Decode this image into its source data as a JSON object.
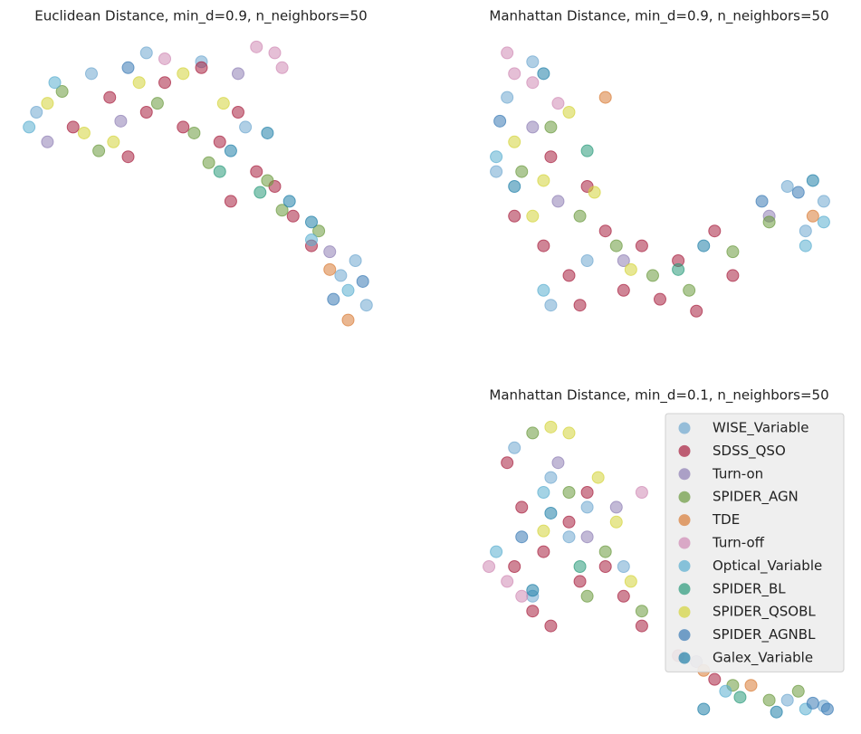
{
  "chart_data": [
    {
      "type": "scatter",
      "title": "Euclidean Distance, min_d=0.9, n_neighbors=50",
      "xlim": [
        0,
        100
      ],
      "ylim": [
        0,
        100
      ],
      "series": [
        {
          "color": "#6fa8d0",
          "x": [
            5,
            20,
            35,
            50,
            88,
            95,
            92,
            62
          ],
          "y": [
            75,
            88,
            95,
            92,
            20,
            10,
            25,
            70
          ]
        },
        {
          "color": "#a8203f",
          "x": [
            15,
            25,
            40,
            45,
            55,
            60,
            65,
            70,
            75,
            30,
            50,
            80,
            35,
            58
          ],
          "y": [
            70,
            80,
            85,
            70,
            65,
            75,
            55,
            50,
            40,
            60,
            90,
            30,
            75,
            45
          ]
        },
        {
          "color": "#8f7fb5",
          "x": [
            8,
            28,
            60,
            85
          ],
          "y": [
            65,
            72,
            88,
            28
          ]
        },
        {
          "color": "#6b9a3e",
          "x": [
            12,
            22,
            38,
            52,
            68,
            72,
            48,
            82
          ],
          "y": [
            82,
            62,
            78,
            58,
            52,
            42,
            68,
            35
          ]
        },
        {
          "color": "#d97c36",
          "x": [
            90,
            85
          ],
          "y": [
            5,
            22
          ]
        },
        {
          "color": "#d08ab5",
          "x": [
            65,
            70,
            72,
            40
          ],
          "y": [
            97,
            95,
            90,
            93
          ]
        },
        {
          "color": "#5aaed0",
          "x": [
            3,
            10,
            90,
            80
          ],
          "y": [
            70,
            85,
            15,
            32
          ]
        },
        {
          "color": "#2a9a7a",
          "x": [
            55,
            66
          ],
          "y": [
            55,
            48
          ]
        },
        {
          "color": "#d4d43a",
          "x": [
            18,
            26,
            33,
            45,
            8,
            56
          ],
          "y": [
            68,
            65,
            85,
            88,
            78,
            78
          ]
        },
        {
          "color": "#3a7ab5",
          "x": [
            30,
            86,
            94
          ],
          "y": [
            90,
            12,
            18
          ]
        },
        {
          "color": "#1f7fa8",
          "x": [
            68,
            74,
            58,
            80
          ],
          "y": [
            68,
            45,
            62,
            38
          ]
        }
      ]
    },
    {
      "type": "scatter",
      "title": "Manhattan Distance, min_d=0.9, n_neighbors=50",
      "xlim": [
        0,
        100
      ],
      "ylim": [
        0,
        100
      ],
      "series": [
        {
          "color": "#6fa8d0",
          "x": [
            8,
            15,
            5,
            30,
            95,
            90,
            20,
            85
          ],
          "y": [
            80,
            92,
            55,
            25,
            45,
            35,
            10,
            50
          ]
        },
        {
          "color": "#a8203f",
          "x": [
            10,
            18,
            25,
            30,
            40,
            50,
            55,
            60,
            70,
            35,
            20,
            45,
            65,
            28
          ],
          "y": [
            40,
            30,
            20,
            50,
            15,
            12,
            25,
            8,
            20,
            35,
            60,
            30,
            35,
            10
          ]
        },
        {
          "color": "#8f7fb5",
          "x": [
            15,
            22,
            40,
            80
          ],
          "y": [
            70,
            45,
            25,
            40
          ]
        },
        {
          "color": "#6b9a3e",
          "x": [
            12,
            20,
            28,
            38,
            48,
            58,
            70,
            80
          ],
          "y": [
            55,
            70,
            40,
            30,
            20,
            15,
            28,
            38
          ]
        },
        {
          "color": "#d97c36",
          "x": [
            35,
            92
          ],
          "y": [
            80,
            40
          ]
        },
        {
          "color": "#d08ab5",
          "x": [
            8,
            10,
            15,
            22
          ],
          "y": [
            95,
            88,
            85,
            78
          ]
        },
        {
          "color": "#5aaed0",
          "x": [
            5,
            90,
            95,
            18
          ],
          "y": [
            60,
            30,
            38,
            15
          ]
        },
        {
          "color": "#2a9a7a",
          "x": [
            30,
            55
          ],
          "y": [
            62,
            22
          ]
        },
        {
          "color": "#d4d43a",
          "x": [
            10,
            18,
            25,
            32,
            15,
            42
          ],
          "y": [
            65,
            52,
            75,
            48,
            40,
            22
          ]
        },
        {
          "color": "#3a7ab5",
          "x": [
            6,
            88,
            78
          ],
          "y": [
            72,
            48,
            45
          ]
        },
        {
          "color": "#1f7fa8",
          "x": [
            18,
            10,
            62,
            92
          ],
          "y": [
            88,
            50,
            30,
            52
          ]
        }
      ]
    },
    {
      "type": "scatter",
      "title": "Manhattan Distance, min_d=0.1, n_neighbors=50",
      "xlim": [
        0,
        100
      ],
      "ylim": [
        0,
        100
      ],
      "legend": "upper right",
      "series": [
        {
          "name": "WISE_Variable",
          "color": "#6fa8d0",
          "x": [
            10,
            20,
            25,
            15,
            85,
            95,
            40,
            30
          ],
          "y": [
            90,
            80,
            60,
            40,
            5,
            3,
            50,
            70
          ]
        },
        {
          "name": "SDSS_QSO",
          "color": "#a8203f",
          "x": [
            8,
            12,
            18,
            25,
            30,
            35,
            40,
            20,
            28,
            15,
            45,
            55,
            65,
            10
          ],
          "y": [
            85,
            70,
            55,
            65,
            75,
            50,
            40,
            30,
            45,
            35,
            30,
            20,
            12,
            50
          ]
        },
        {
          "name": "Turn-on",
          "color": "#8f7fb5",
          "x": [
            22,
            30,
            38,
            60
          ],
          "y": [
            85,
            60,
            70,
            18
          ]
        },
        {
          "name": "SPIDER_AGN",
          "color": "#6b9a3e",
          "x": [
            15,
            25,
            35,
            45,
            30,
            70,
            80,
            88
          ],
          "y": [
            95,
            75,
            55,
            35,
            40,
            10,
            5,
            8
          ]
        },
        {
          "name": "TDE",
          "color": "#d97c36",
          "x": [
            62,
            75
          ],
          "y": [
            15,
            10
          ]
        },
        {
          "name": "Turn-off",
          "color": "#d08ab5",
          "x": [
            3,
            8,
            12,
            45
          ],
          "y": [
            50,
            45,
            40,
            75
          ]
        },
        {
          "name": "Optical_Variable",
          "color": "#5aaed0",
          "x": [
            18,
            5,
            90,
            68
          ],
          "y": [
            75,
            55,
            2,
            8
          ]
        },
        {
          "name": "SPIDER_BL",
          "color": "#2a9a7a",
          "x": [
            28,
            72
          ],
          "y": [
            50,
            6
          ]
        },
        {
          "name": "SPIDER_QSOBL",
          "color": "#d4d43a",
          "x": [
            20,
            25,
            33,
            38,
            42,
            18
          ],
          "y": [
            97,
            95,
            80,
            65,
            45,
            62
          ]
        },
        {
          "name": "SPIDER_AGNBL",
          "color": "#3a7ab5",
          "x": [
            12,
            92,
            96
          ],
          "y": [
            60,
            4,
            2
          ]
        },
        {
          "name": "Galex_Variable",
          "color": "#1f7fa8",
          "x": [
            20,
            15,
            62,
            82
          ],
          "y": [
            68,
            42,
            2,
            1
          ]
        }
      ]
    }
  ]
}
